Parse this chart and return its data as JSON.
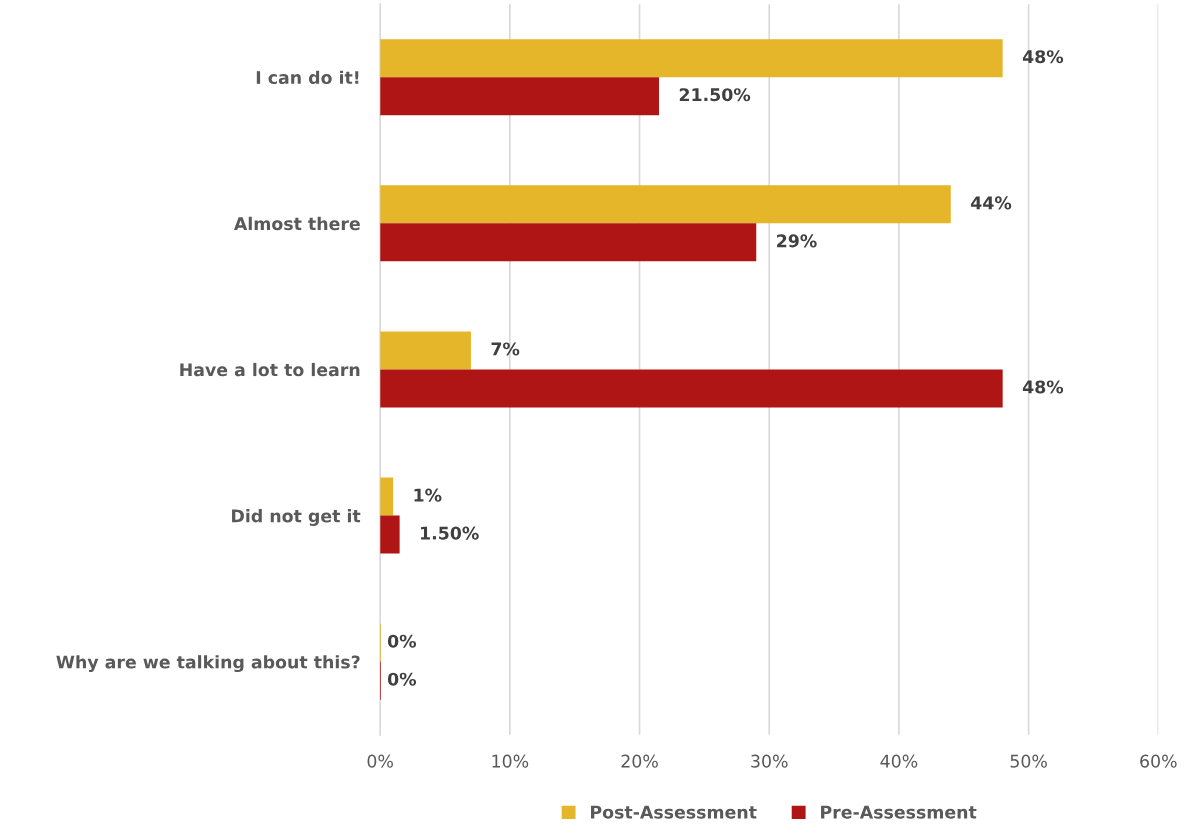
{
  "chart_data": {
    "type": "bar",
    "orientation": "horizontal",
    "categories": [
      "I can do it!",
      "Almost there",
      "Have a lot to learn",
      "Did not get it",
      "Why are we talking about this?"
    ],
    "series": [
      {
        "name": "Post-Assessment",
        "color": "#e5b62a",
        "values": [
          48,
          44,
          7,
          1,
          0
        ],
        "value_labels": [
          "48%",
          "44%",
          "7%",
          "1%",
          "0%"
        ]
      },
      {
        "name": "Pre-Assessment",
        "color": "#b01515",
        "values": [
          21.5,
          29,
          48,
          1.5,
          0
        ],
        "value_labels": [
          "21.50%",
          "29%",
          "48%",
          "1.50%",
          "0%"
        ]
      }
    ],
    "xlim": [
      0,
      60
    ],
    "xticks": [
      {
        "value": 0,
        "label": "0%"
      },
      {
        "value": 10,
        "label": "10%"
      },
      {
        "value": 20,
        "label": "20%"
      },
      {
        "value": 30,
        "label": "30%"
      },
      {
        "value": 40,
        "label": "40%"
      },
      {
        "value": 50,
        "label": "50%"
      },
      {
        "value": 60,
        "label": "60%"
      }
    ],
    "grid": "x",
    "legend": "bottom"
  }
}
